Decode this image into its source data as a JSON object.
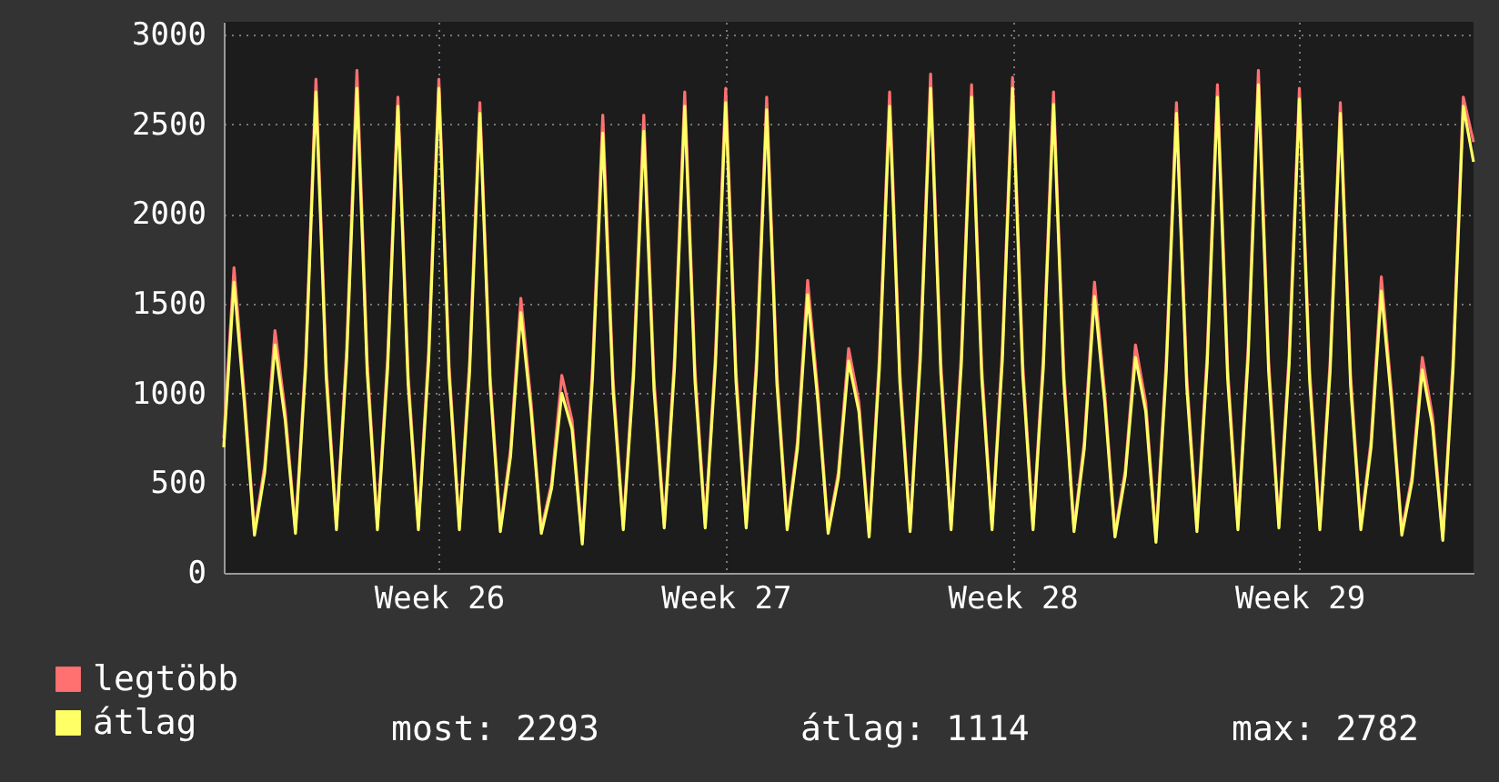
{
  "chart_data": {
    "type": "line",
    "categories": [
      null,
      null,
      null,
      null,
      null,
      null,
      null,
      null,
      null,
      null,
      null,
      null,
      null,
      null,
      null,
      null,
      null,
      null,
      null,
      null,
      null,
      "Week 26",
      null,
      null,
      null,
      null,
      null,
      null,
      null,
      null,
      null,
      null,
      null,
      null,
      null,
      null,
      null,
      null,
      null,
      null,
      null,
      null,
      null,
      null,
      null,
      null,
      null,
      null,
      null,
      "Week 27",
      null,
      null,
      null,
      null,
      null,
      null,
      null,
      null,
      null,
      null,
      null,
      null,
      null,
      null,
      null,
      null,
      null,
      null,
      null,
      null,
      null,
      null,
      null,
      null,
      null,
      null,
      null,
      "Week 28",
      null,
      null,
      null,
      null,
      null,
      null,
      null,
      null,
      null,
      null,
      null,
      null,
      null,
      null,
      null,
      null,
      null,
      null,
      null,
      null,
      null,
      null,
      null,
      null,
      null,
      null,
      null,
      "Week 29",
      null,
      null,
      null,
      null,
      null,
      null,
      null,
      null,
      null,
      null,
      null,
      null,
      null,
      null,
      null,
      null,
      null
    ],
    "series": [
      {
        "name": "legtöbb",
        "color": "#ff7070",
        "values": [
          750,
          1700,
          1000,
          230,
          600,
          1350,
          900,
          240,
          1200,
          2750,
          1150,
          260,
          1250,
          2800,
          1180,
          260,
          1200,
          2650,
          1100,
          260,
          1240,
          2750,
          1150,
          260,
          1180,
          2620,
          1100,
          250,
          690,
          1530,
          950,
          240,
          500,
          1100,
          850,
          180,
          1150,
          2550,
          1080,
          260,
          1150,
          2550,
          1080,
          270,
          1200,
          2680,
          1130,
          270,
          1220,
          2700,
          1130,
          270,
          1190,
          2650,
          1110,
          260,
          730,
          1630,
          1000,
          240,
          560,
          1250,
          950,
          220,
          1200,
          2680,
          1120,
          250,
          1250,
          2780,
          1170,
          260,
          1220,
          2720,
          1140,
          260,
          1240,
          2760,
          1160,
          260,
          1200,
          2680,
          1130,
          250,
          730,
          1620,
          1000,
          220,
          570,
          1270,
          950,
          190,
          1180,
          2620,
          1100,
          250,
          1220,
          2720,
          1140,
          260,
          1260,
          2800,
          1180,
          270,
          1220,
          2700,
          1130,
          260,
          1180,
          2620,
          1100,
          260,
          740,
          1650,
          1000,
          230,
          540,
          1200,
          870,
          200,
          1190,
          2650,
          2400
        ]
      },
      {
        "name": "átlag",
        "color": "#ffff66",
        "values": [
          700,
          1620,
          950,
          210,
          560,
          1270,
          850,
          220,
          1150,
          2680,
          1090,
          240,
          1190,
          2700,
          1120,
          240,
          1140,
          2600,
          1050,
          240,
          1180,
          2700,
          1100,
          240,
          1120,
          2560,
          1050,
          230,
          650,
          1450,
          900,
          220,
          470,
          1000,
          800,
          160,
          1090,
          2450,
          1020,
          240,
          1090,
          2460,
          1020,
          250,
          1140,
          2600,
          1070,
          250,
          1160,
          2620,
          1070,
          250,
          1130,
          2580,
          1050,
          240,
          690,
          1550,
          950,
          220,
          530,
          1180,
          900,
          200,
          1140,
          2600,
          1060,
          230,
          1190,
          2700,
          1110,
          240,
          1160,
          2650,
          1080,
          240,
          1180,
          2700,
          1100,
          240,
          1140,
          2610,
          1070,
          230,
          690,
          1540,
          950,
          200,
          540,
          1200,
          900,
          170,
          1120,
          2560,
          1040,
          230,
          1160,
          2650,
          1080,
          240,
          1200,
          2720,
          1120,
          250,
          1160,
          2640,
          1070,
          240,
          1120,
          2560,
          1040,
          240,
          700,
          1570,
          950,
          210,
          510,
          1130,
          820,
          180,
          1130,
          2600,
          2290
        ]
      }
    ],
    "ylim": [
      0,
      3070
    ],
    "yticks": [
      0,
      500,
      1000,
      1500,
      2000,
      2500,
      3000
    ],
    "grid": true,
    "legend": "bottom left",
    "annotations": [
      "most: 2293",
      "átlag: 1114",
      "max: 2782"
    ]
  }
}
